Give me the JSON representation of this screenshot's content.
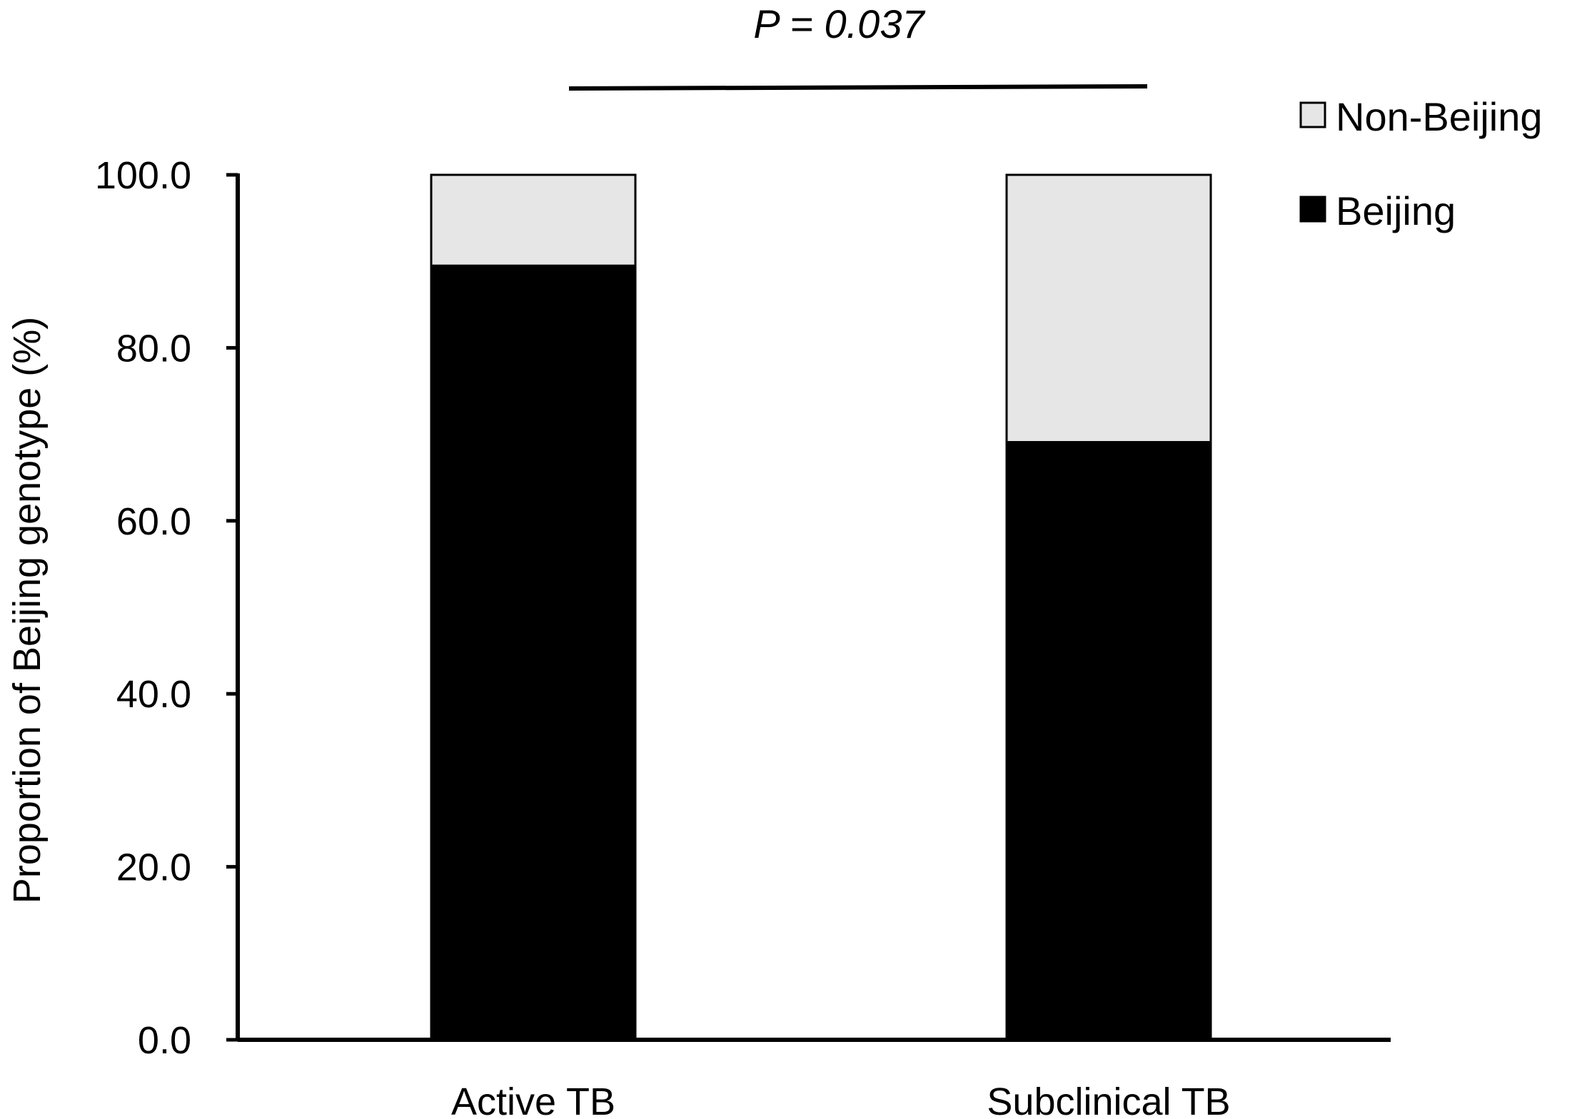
{
  "chart_data": {
    "type": "bar",
    "stacked": true,
    "categories": [
      "Active TB",
      "Subclinical TB"
    ],
    "series": [
      {
        "name": "Beijing",
        "values": [
          89.5,
          69.1
        ],
        "color": "#000000"
      },
      {
        "name": "Non-Beijing",
        "values": [
          10.5,
          30.9
        ],
        "color": "#e6e6e6"
      }
    ],
    "title": "",
    "xlabel": "",
    "ylabel": "Proportion of Beijing genotype (%)",
    "ylim": [
      0,
      100
    ],
    "yticks": [
      "0.0",
      "20.0",
      "40.0",
      "60.0",
      "80.0",
      "100.0"
    ],
    "ytick_values": [
      0,
      20,
      40,
      60,
      80,
      100
    ],
    "grid": false,
    "legend": {
      "position": "top-right",
      "entries": [
        "Non-Beijing",
        "Beijing"
      ]
    },
    "annotation": {
      "text": "P = 0.037",
      "type": "significance-bracket",
      "between": [
        "Active TB",
        "Subclinical TB"
      ]
    }
  }
}
